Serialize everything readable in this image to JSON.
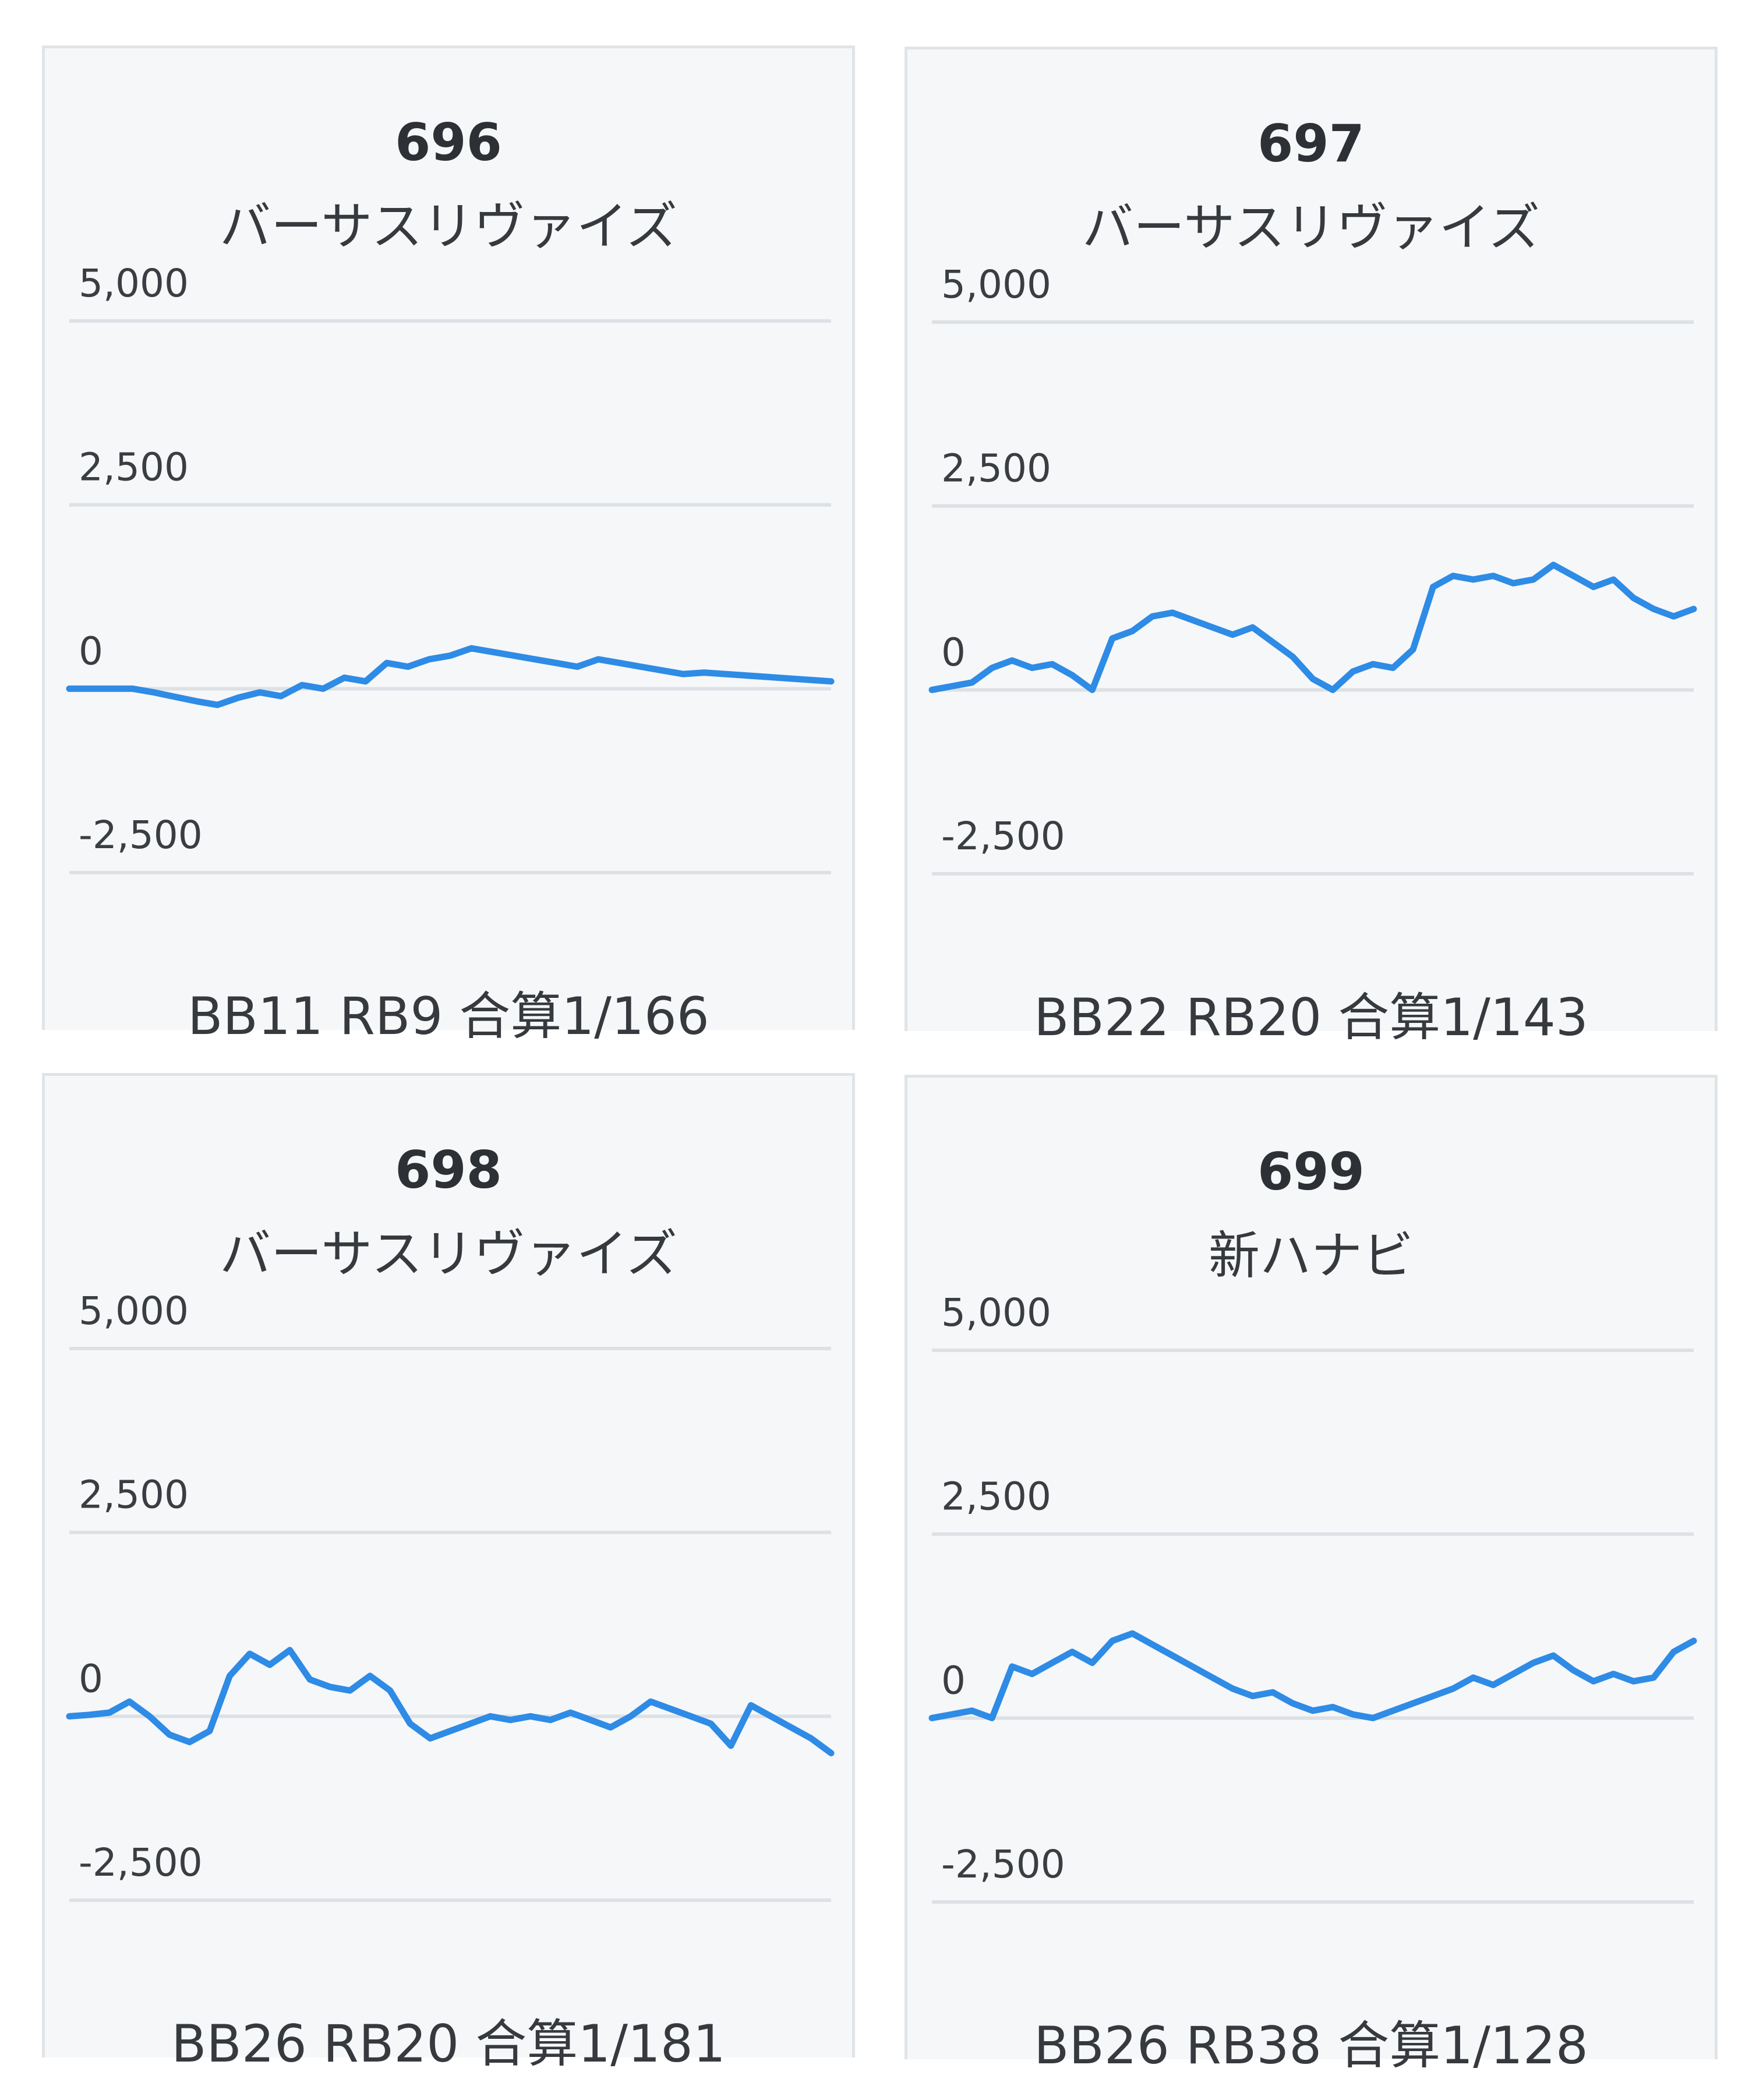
{
  "colors": {
    "line": "#2e8be6",
    "grid": "#dde1e5",
    "card_bg": "#f6f7f8",
    "card_border": "#e1e4e7"
  },
  "chart_data": [
    {
      "type": "line",
      "title": "696",
      "subtitle": "バーサスリヴァイズ",
      "footer": "BB11 RB9 合算1/166",
      "ylim": [
        -2500,
        5000
      ],
      "yticks": [
        "5,000",
        "2,500",
        "0",
        "-2,500"
      ],
      "grid": true,
      "series": [
        {
          "values": [
            0,
            0,
            0,
            0,
            -50,
            -110,
            -170,
            -220,
            -120,
            -50,
            -100,
            50,
            0,
            150,
            100,
            350,
            300,
            400,
            450,
            550,
            500,
            450,
            400,
            350,
            300,
            400,
            350,
            300,
            250,
            200,
            220,
            200,
            180,
            160,
            140,
            120,
            100
          ]
        }
      ]
    },
    {
      "type": "line",
      "title": "697",
      "subtitle": "バーサスリヴァイズ",
      "footer": "BB22 RB20 合算1/143",
      "ylim": [
        -2500,
        5000
      ],
      "yticks": [
        "5,000",
        "2,500",
        "0",
        "-2,500"
      ],
      "grid": true,
      "series": [
        {
          "values": [
            0,
            50,
            100,
            300,
            400,
            300,
            350,
            200,
            0,
            700,
            800,
            1000,
            1050,
            950,
            850,
            750,
            850,
            650,
            450,
            150,
            0,
            250,
            350,
            300,
            550,
            1400,
            1550,
            1500,
            1550,
            1450,
            1500,
            1700,
            1550,
            1400,
            1500,
            1250,
            1100,
            1000,
            1100
          ]
        }
      ]
    },
    {
      "type": "line",
      "title": "698",
      "subtitle": "バーサスリヴァイズ",
      "footer": "BB26 RB20 合算1/181",
      "ylim": [
        -2500,
        5000
      ],
      "yticks": [
        "5,000",
        "2,500",
        "0",
        "-2,500"
      ],
      "grid": true,
      "series": [
        {
          "values": [
            0,
            20,
            50,
            200,
            0,
            -250,
            -350,
            -200,
            550,
            850,
            700,
            900,
            500,
            400,
            350,
            550,
            350,
            -100,
            -300,
            -200,
            -100,
            0,
            -50,
            0,
            -50,
            50,
            -50,
            -150,
            0,
            200,
            100,
            0,
            -100,
            -400,
            150,
            0,
            -150,
            -300,
            -500
          ]
        }
      ]
    },
    {
      "type": "line",
      "title": "699",
      "subtitle": "新ハナビ",
      "footer": "BB26 RB38 合算1/128",
      "ylim": [
        -2500,
        5000
      ],
      "yticks": [
        "5,000",
        "2,500",
        "0",
        "-2,500"
      ],
      "grid": true,
      "series": [
        {
          "values": [
            0,
            50,
            100,
            0,
            700,
            600,
            750,
            900,
            750,
            1050,
            1150,
            1000,
            850,
            700,
            550,
            400,
            300,
            350,
            200,
            100,
            150,
            50,
            0,
            100,
            200,
            300,
            400,
            550,
            450,
            600,
            750,
            850,
            650,
            500,
            600,
            500,
            550,
            900,
            1050
          ]
        }
      ]
    }
  ]
}
